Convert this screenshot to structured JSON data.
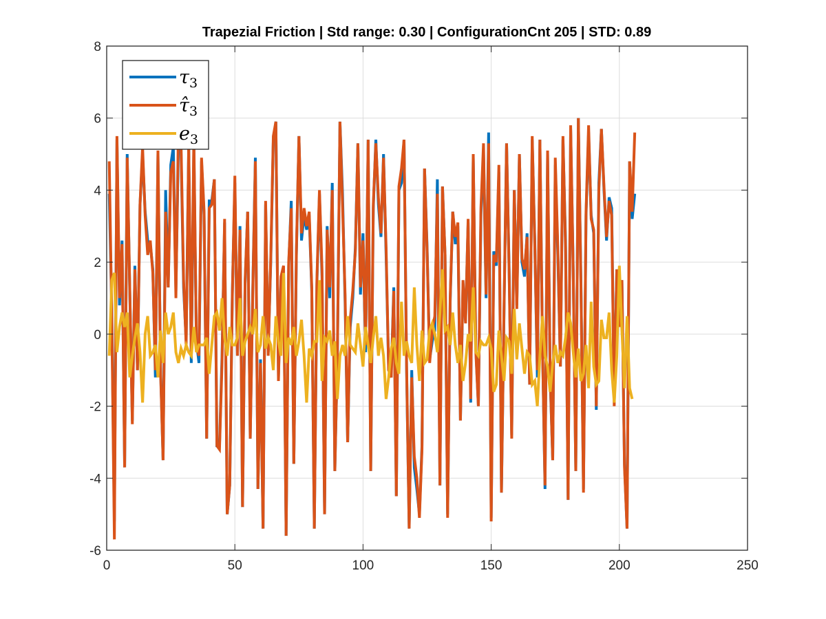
{
  "chart_data": {
    "type": "line",
    "title": "Trapezial Friction | Std range: 0.30 | ConfigurationCnt 205 | STD: 0.89",
    "xlabel": "",
    "ylabel": "",
    "xlim": [
      0,
      250
    ],
    "ylim": [
      -6,
      8
    ],
    "x_ticks": [
      0,
      50,
      100,
      150,
      200,
      250
    ],
    "y_ticks": [
      -6,
      -4,
      -2,
      0,
      2,
      4,
      6,
      8
    ],
    "x_tick_labels": [
      "0",
      "50",
      "100",
      "150",
      "200",
      "250"
    ],
    "y_tick_labels": [
      "-6",
      "-4",
      "-2",
      "0",
      "2",
      "4",
      "6",
      "8"
    ],
    "grid": true,
    "legend_position": "top-left",
    "x_start": 1,
    "x_step": 1,
    "series": [
      {
        "name": "τ3",
        "color": "#0072BD",
        "values": [
          3.9,
          0.6,
          -5.2,
          5.4,
          0.8,
          2.6,
          -3.7,
          5.0,
          1.2,
          -2.4,
          1.9,
          -1.0,
          3.6,
          5.0,
          3.4,
          2.6,
          2.5,
          1.8,
          -1.2,
          5.0,
          -0.9,
          -3.5,
          4.0,
          1.3,
          4.7,
          5.2,
          1.2,
          5.3,
          5.1,
          1.3,
          -0.2,
          5.2,
          -0.8,
          5.2,
          -0.2,
          -0.8,
          4.8,
          3.3,
          -2.9,
          3.7,
          3.7,
          4.3,
          -3.1,
          -3.1,
          -0.6,
          3.1,
          -5.0,
          -4.2,
          1.1,
          4.2,
          -0.6,
          3.0,
          -4.8,
          1.4,
          3.4,
          -2.9,
          1.3,
          4.9,
          -4.3,
          -0.7,
          -5.4,
          3.6,
          -0.5,
          2.0,
          5.4,
          5.9,
          -1.2,
          1.5,
          1.8,
          -5.6,
          1.9,
          3.7,
          -3.6,
          2.2,
          5.5,
          2.6,
          3.3,
          2.9,
          3.3,
          1.2,
          -5.4,
          1.4,
          3.9,
          1.6,
          -5.0,
          3.0,
          1.0,
          4.2,
          -3.8,
          -0.6,
          5.9,
          3.9,
          0.9,
          -3.0,
          0.2,
          1.0,
          2.4,
          5.3,
          1.1,
          2.8,
          -0.5,
          5.4,
          -3.8,
          3.5,
          5.4,
          3.6,
          2.7,
          5.0,
          2.2,
          -1.0,
          -1.1,
          1.3,
          -4.5,
          4.0,
          4.2,
          5.4,
          -1.0,
          -5.4,
          -1.0,
          -3.7,
          -4.3,
          -5.0,
          -3.1,
          4.6,
          2.4,
          -0.7,
          -0.2,
          0.1,
          4.3,
          -4.2,
          4.1,
          2.2,
          -5.0,
          0.9,
          3.4,
          2.5,
          3.0,
          -2.4,
          1.4,
          0.4,
          3.1,
          -1.9,
          4.9,
          -0.4,
          -2.0,
          3.3,
          5.1,
          1.0,
          5.6,
          -5.1,
          2.3,
          1.9,
          4.5,
          -4.4,
          0.6,
          5.3,
          1.8,
          -2.8,
          4.0,
          0.8,
          5.0,
          2.0,
          1.6,
          2.8,
          -1.4,
          5.4,
          2.6,
          -1.2,
          5.4,
          -0.3,
          -4.3,
          5.0,
          -1.2,
          -3.5,
          4.7,
          2.2,
          -0.9,
          5.4,
          2.6,
          -4.6,
          5.7,
          1.8,
          -3.8,
          6.0,
          1.5,
          -4.3,
          3.3,
          5.6,
          3.3,
          2.8,
          -2.1,
          4.2,
          5.7,
          4.0,
          2.6,
          3.8,
          3.5,
          -1.9,
          1.8,
          0.2,
          1.5,
          -3.6,
          -5.4,
          4.8,
          3.2,
          3.9
        ]
      },
      {
        "name": "τ̂3",
        "color": "#D95319",
        "values": [
          4.8,
          0.4,
          -5.7,
          5.5,
          1.0,
          2.5,
          -3.7,
          4.9,
          1.3,
          -2.5,
          1.8,
          -1.0,
          3.6,
          5.2,
          3.3,
          2.2,
          2.6,
          1.7,
          -1.0,
          5.1,
          -1.0,
          -3.5,
          3.4,
          1.3,
          4.5,
          4.8,
          1.0,
          5.8,
          5.3,
          1.5,
          -0.3,
          5.3,
          -0.6,
          5.5,
          -0.3,
          -0.6,
          4.9,
          3.4,
          -2.9,
          3.5,
          3.6,
          4.3,
          -3.1,
          -3.2,
          -0.8,
          3.2,
          -5.0,
          -4.2,
          1.0,
          4.4,
          -0.6,
          2.9,
          -4.8,
          1.5,
          3.4,
          -2.9,
          1.2,
          4.8,
          -4.3,
          -0.8,
          -5.4,
          3.7,
          -0.6,
          2.1,
          5.5,
          5.9,
          -1.3,
          1.6,
          1.9,
          -5.6,
          2.0,
          3.5,
          -3.6,
          2.3,
          5.5,
          2.8,
          3.5,
          3.0,
          3.4,
          1.3,
          -5.4,
          1.5,
          4.0,
          1.8,
          -5.0,
          2.9,
          1.3,
          4.0,
          -3.8,
          -0.5,
          5.9,
          3.6,
          1.1,
          -3.0,
          0.4,
          1.2,
          2.3,
          5.3,
          1.3,
          2.6,
          -0.3,
          5.4,
          -3.8,
          3.6,
          5.3,
          3.8,
          2.8,
          4.9,
          2.4,
          -1.0,
          -1.2,
          1.2,
          -4.5,
          4.1,
          4.6,
          5.4,
          -0.9,
          -5.4,
          -1.2,
          -3.4,
          -4.0,
          -5.1,
          -3.2,
          4.6,
          2.3,
          -0.8,
          0.1,
          0.5,
          3.9,
          -4.2,
          4.1,
          2.2,
          -5.1,
          1.0,
          3.4,
          2.7,
          3.1,
          -2.4,
          1.5,
          0.3,
          3.2,
          -1.8,
          5.0,
          -0.5,
          -2.0,
          3.5,
          5.3,
          1.1,
          5.3,
          -5.2,
          2.2,
          2.0,
          4.7,
          -4.4,
          0.7,
          5.3,
          1.7,
          -2.9,
          4.0,
          0.7,
          5.0,
          2.1,
          1.8,
          2.7,
          -1.4,
          5.5,
          2.5,
          -1.0,
          5.4,
          -0.3,
          -4.2,
          5.1,
          -1.1,
          -3.5,
          4.9,
          2.4,
          -0.9,
          5.5,
          2.4,
          -4.6,
          5.8,
          1.7,
          -3.8,
          6.0,
          1.4,
          -4.4,
          3.4,
          5.8,
          3.2,
          2.9,
          -2.0,
          4.0,
          5.7,
          4.1,
          2.7,
          3.7,
          3.3,
          -2.0,
          1.8,
          0.2,
          1.5,
          -3.7,
          -5.4,
          4.8,
          3.4,
          5.6
        ]
      },
      {
        "name": "e3",
        "color": "#EDB120",
        "values": [
          -0.6,
          1.5,
          1.7,
          -0.5,
          0.2,
          0.6,
          0.2,
          0.6,
          -1.2,
          -0.6,
          -0.1,
          0.3,
          -0.5,
          -1.9,
          0.0,
          0.5,
          -0.6,
          -0.5,
          -0.3,
          -1.2,
          0.1,
          -0.8,
          0.6,
          0.0,
          0.2,
          0.6,
          -0.5,
          -0.8,
          -0.4,
          -0.6,
          -0.3,
          -0.5,
          -0.6,
          0.2,
          -0.5,
          -0.3,
          -0.3,
          -0.3,
          -0.1,
          -1.1,
          -0.3,
          0.5,
          0.6,
          0.1,
          1.0,
          -0.1,
          -0.6,
          0.2,
          -0.3,
          -0.3,
          -0.1,
          1.0,
          -0.6,
          -0.2,
          0.0,
          0.2,
          0.0,
          0.7,
          -0.5,
          -0.3,
          0.5,
          -0.4,
          -0.1,
          -0.3,
          -1.0,
          0.5,
          -0.2,
          -0.6,
          1.7,
          -0.8,
          -0.1,
          -0.3,
          0.2,
          -0.6,
          -0.2,
          0.4,
          -0.6,
          -1.9,
          -0.4,
          -0.6,
          -0.2,
          -0.2,
          1.5,
          -1.3,
          -0.1,
          -0.2,
          0.1,
          -0.6,
          -0.2,
          -1.8,
          -0.6,
          -0.3,
          -0.6,
          0.5,
          -0.3,
          -0.4,
          -0.5,
          0.3,
          -0.3,
          -0.9,
          0.2,
          -0.3,
          -0.8,
          -0.1,
          0.5,
          -0.6,
          -0.1,
          -0.6,
          -1.8,
          -1.2,
          -0.4,
          -0.1,
          -0.8,
          -1.1,
          0.9,
          -0.6,
          -0.2,
          -0.6,
          -0.8,
          1.3,
          -0.3,
          -1.3,
          0.1,
          -0.8,
          -0.7,
          0.1,
          0.3,
          0.0,
          -0.5,
          0.6,
          1.8,
          0.1,
          0.2,
          -0.3,
          0.6,
          -0.3,
          -0.8,
          -0.3,
          -1.3,
          -0.8,
          0.0,
          -0.2,
          1.3,
          -0.5,
          -0.6,
          -0.2,
          -0.3,
          -0.3,
          -0.1,
          -0.4,
          -1.6,
          -1.4,
          0.1,
          -0.6,
          -1.3,
          -0.1,
          -0.2,
          -1.1,
          0.7,
          -0.7,
          0.3,
          -0.4,
          -1.1,
          -0.5,
          -0.6,
          -1.4,
          -1.3,
          -2.0,
          -0.6,
          0.5,
          -0.6,
          -0.9,
          -1.6,
          -0.8,
          -0.3,
          -0.8,
          -0.5,
          -0.6,
          -0.1,
          0.6,
          0.3,
          -0.5,
          -1.2,
          -0.4,
          -1.3,
          -1.1,
          -0.3,
          -1.5,
          0.9,
          -0.9,
          -1.4,
          -1.3,
          0.4,
          -0.1,
          -0.1,
          0.6,
          -1.0,
          -1.9,
          -0.6,
          1.9,
          0.1,
          -1.5,
          0.5,
          -1.5,
          -1.8
        ]
      }
    ]
  }
}
